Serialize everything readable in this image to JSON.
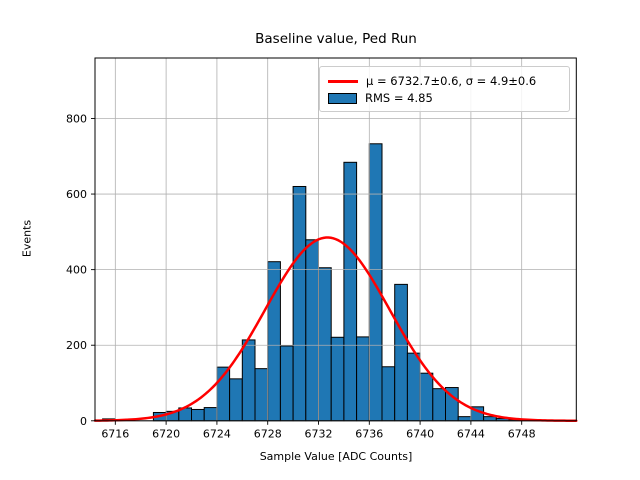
{
  "title": "Baseline value, Ped Run",
  "xlabel": "Sample Value [ADC Counts]",
  "ylabel": "Events",
  "legend": {
    "position": "upper right",
    "items": [
      {
        "swatch": "red-line",
        "label": "μ = 6732.7±0.6, σ = 4.9±0.6"
      },
      {
        "swatch": "blue-patch",
        "label": "RMS = 4.85"
      }
    ]
  },
  "colors": {
    "bar_fill": "#1f77b4",
    "bar_edge": "#000000",
    "fit_line": "#ff0000",
    "grid": "#b0b0b0",
    "spine": "#000000",
    "background": "#ffffff"
  },
  "chart_data": {
    "type": "bar",
    "subtype": "histogram",
    "title": "Baseline value, Ped Run",
    "xlabel": "Sample Value [ADC Counts]",
    "ylabel": "Events",
    "bin_width": 1,
    "bin_left_edges": [
      6715,
      6716,
      6717,
      6718,
      6719,
      6720,
      6721,
      6722,
      6723,
      6724,
      6725,
      6726,
      6727,
      6728,
      6729,
      6730,
      6731,
      6732,
      6733,
      6734,
      6735,
      6736,
      6737,
      6738,
      6739,
      6740,
      6741,
      6742,
      6743,
      6744,
      6745,
      6746,
      6747,
      6748,
      6749
    ],
    "counts": [
      5,
      0,
      0,
      0,
      22,
      25,
      34,
      30,
      35,
      142,
      111,
      214,
      138,
      421,
      198,
      620,
      479,
      405,
      221,
      684,
      222,
      733,
      143,
      361,
      179,
      126,
      85,
      88,
      11,
      37,
      11,
      6,
      3,
      2,
      1
    ],
    "fit": {
      "shape": "gaussian",
      "mu": 6732.7,
      "mu_err": 0.6,
      "sigma": 4.9,
      "sigma_err": 0.6,
      "amplitude": 485
    },
    "rms": 4.85,
    "xticks": [
      6716,
      6720,
      6724,
      6728,
      6732,
      6736,
      6740,
      6744,
      6748
    ],
    "yticks": [
      0,
      200,
      400,
      600,
      800
    ],
    "xlim": [
      6714.4,
      6752.3
    ],
    "ylim": [
      0,
      960
    ],
    "grid": true,
    "grid_above_bars": true,
    "legend_position": "upper right"
  }
}
